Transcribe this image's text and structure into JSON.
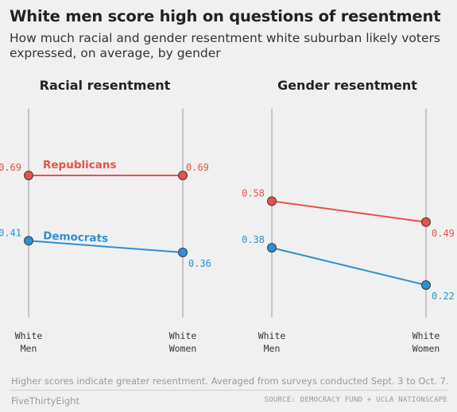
{
  "title": "White men score high on questions of resentment",
  "subtitle": "How much racial and gender resentment white suburban likely voters expressed, on average, by gender",
  "colors": {
    "republicans": "#e8514b",
    "democrats": "#2b91d3"
  },
  "chart_data": [
    {
      "type": "line",
      "title": "Racial resentment",
      "categories": [
        "White Men",
        "White Women"
      ],
      "series": [
        {
          "name": "Republicans",
          "values": [
            0.69,
            0.69
          ]
        },
        {
          "name": "Democrats",
          "values": [
            0.41,
            0.36
          ]
        }
      ]
    },
    {
      "type": "line",
      "title": "Gender resentment",
      "categories": [
        "White Men",
        "White Women"
      ],
      "series": [
        {
          "values": [
            0.58,
            0.49
          ]
        },
        {
          "values": [
            0.38,
            0.22
          ]
        }
      ]
    }
  ],
  "note": "Higher scores indicate greater resentment. Averaged from surveys conducted Sept. 3 to Oct. 7.",
  "brand": "FiveThirtyEight",
  "source": "SOURCE: DEMOCRACY FUND + UCLA NATIONSCAPE"
}
